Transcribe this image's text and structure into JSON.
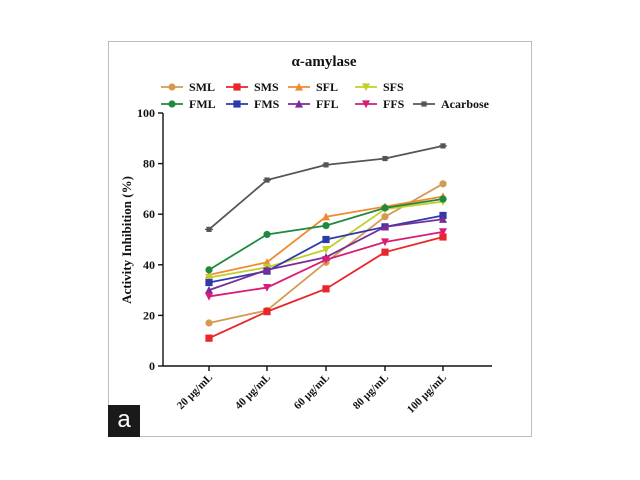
{
  "figure": {
    "panel_label": "a"
  },
  "chart_data": {
    "type": "line",
    "title": "α-amylase",
    "xlabel": "",
    "ylabel": "Activity Inhibition (%)",
    "categories": [
      "20 μg/mL",
      "40 μg/mL",
      "60 μg/mL",
      "80 μg/mL",
      "100 μg/mL"
    ],
    "ylim": [
      0,
      100
    ],
    "yticks": [
      0,
      20,
      40,
      60,
      80,
      100
    ],
    "grid": false,
    "legend_position": "top",
    "series": [
      {
        "name": "SML",
        "color": "#d59a52",
        "marker": "circle",
        "values": [
          17,
          22,
          41,
          59,
          72
        ]
      },
      {
        "name": "SMS",
        "color": "#e8262b",
        "marker": "square",
        "values": [
          11,
          21.5,
          30.5,
          45,
          51
        ]
      },
      {
        "name": "SFL",
        "color": "#f08a30",
        "marker": "triangle-up",
        "values": [
          36,
          41,
          59,
          63,
          67
        ]
      },
      {
        "name": "SFS",
        "color": "#c3cf2c",
        "marker": "triangle-down",
        "values": [
          35,
          39,
          46,
          62,
          65
        ]
      },
      {
        "name": "FML",
        "color": "#1f8a3f",
        "marker": "circle",
        "values": [
          38,
          52,
          55.5,
          62.5,
          66
        ]
      },
      {
        "name": "FMS",
        "color": "#2e3aa8",
        "marker": "square",
        "values": [
          33,
          37.5,
          50,
          55,
          59.5
        ]
      },
      {
        "name": "FFL",
        "color": "#7a2d9a",
        "marker": "triangle-up",
        "values": [
          30,
          38,
          43,
          55,
          58
        ]
      },
      {
        "name": "FFS",
        "color": "#d61d77",
        "marker": "triangle-down",
        "values": [
          27.5,
          31,
          42,
          49,
          53
        ]
      },
      {
        "name": "Acarbose",
        "color": "#555555",
        "marker": "asterisk",
        "values": [
          54,
          73.5,
          79.5,
          82,
          87
        ]
      }
    ]
  }
}
